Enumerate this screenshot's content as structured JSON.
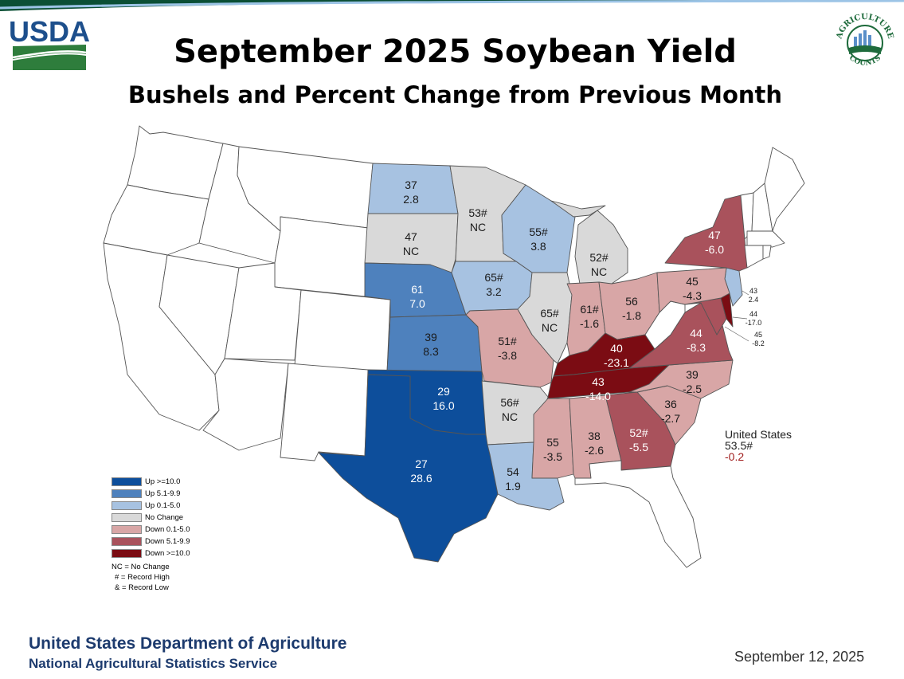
{
  "header": {
    "title": "September 2025 Soybean Yield",
    "subtitle": "Bushels and Percent Change from Previous Month",
    "usda_logo_text": "USDA",
    "nass_logo_top_text": "AGRICULTURE",
    "nass_logo_bottom_text": "COUNTS"
  },
  "legend": {
    "items": [
      {
        "label": "Up >=10.0",
        "color": "#0d4e9b"
      },
      {
        "label": "Up 5.1-9.9",
        "color": "#4e81bd"
      },
      {
        "label": "Up 0.1-5.0",
        "color": "#a7c2e1"
      },
      {
        "label": "No Change",
        "color": "#d9d9d9"
      },
      {
        "label": "Down 0.1-5.0",
        "color": "#d8a6a6"
      },
      {
        "label": "Down 5.1-9.9",
        "color": "#a9525c"
      },
      {
        "label": "Down >=10.0",
        "color": "#7b0c13"
      }
    ],
    "notes": [
      "NC = No Change",
      "# = Record High",
      "& = Record Low"
    ]
  },
  "states": [
    {
      "id": "nd",
      "yield": "37",
      "change": "2.8",
      "class": "up_small"
    },
    {
      "id": "mn",
      "yield": "53#",
      "change": "NC",
      "class": "nc"
    },
    {
      "id": "sd",
      "yield": "47",
      "change": "NC",
      "class": "nc"
    },
    {
      "id": "wi",
      "yield": "55#",
      "change": "3.8",
      "class": "up_small"
    },
    {
      "id": "mi",
      "yield": "52#",
      "change": "NC",
      "class": "nc"
    },
    {
      "id": "ia",
      "yield": "65#",
      "change": "3.2",
      "class": "up_small"
    },
    {
      "id": "ne",
      "yield": "61",
      "change": "7.0",
      "class": "up_mid"
    },
    {
      "id": "ny",
      "yield": "47",
      "change": "-6.0",
      "class": "down_mid"
    },
    {
      "id": "pa",
      "yield": "45",
      "change": "-4.3",
      "class": "down_small"
    },
    {
      "id": "nj",
      "yield": "43",
      "change": "2.4",
      "class": "up_small"
    },
    {
      "id": "de",
      "yield": "44",
      "change": "-17.0",
      "class": "down_big"
    },
    {
      "id": "md",
      "yield": "45",
      "change": "-8.2",
      "class": "down_mid"
    },
    {
      "id": "il",
      "yield": "65#",
      "change": "NC",
      "class": "nc"
    },
    {
      "id": "in",
      "yield": "61#",
      "change": "-1.6",
      "class": "down_small"
    },
    {
      "id": "oh",
      "yield": "56",
      "change": "-1.8",
      "class": "down_small"
    },
    {
      "id": "ks",
      "yield": "39",
      "change": "8.3",
      "class": "up_mid"
    },
    {
      "id": "mo",
      "yield": "51#",
      "change": "-3.8",
      "class": "down_small"
    },
    {
      "id": "ky",
      "yield": "40",
      "change": "-23.1",
      "class": "down_big"
    },
    {
      "id": "va",
      "yield": "44",
      "change": "-8.3",
      "class": "down_mid"
    },
    {
      "id": "tn",
      "yield": "43",
      "change": "-14.0",
      "class": "down_big"
    },
    {
      "id": "nc",
      "yield": "39",
      "change": "-2.5",
      "class": "down_small"
    },
    {
      "id": "ok",
      "yield": "29",
      "change": "16.0",
      "class": "up_big"
    },
    {
      "id": "ar",
      "yield": "56#",
      "change": "NC",
      "class": "nc"
    },
    {
      "id": "sc",
      "yield": "36",
      "change": "-2.7",
      "class": "down_small"
    },
    {
      "id": "ms",
      "yield": "55",
      "change": "-3.5",
      "class": "down_small"
    },
    {
      "id": "al",
      "yield": "38",
      "change": "-2.6",
      "class": "down_small"
    },
    {
      "id": "ga",
      "yield": "52#",
      "change": "-5.5",
      "class": "down_mid"
    },
    {
      "id": "tx",
      "yield": "27",
      "change": "28.6",
      "class": "up_big"
    },
    {
      "id": "la",
      "yield": "54",
      "change": "1.9",
      "class": "up_small"
    }
  ],
  "us_total": {
    "label": "United States",
    "yield": "53.5#",
    "change": "-0.2"
  },
  "footer": {
    "department": "United States Department of Agriculture",
    "agency": "National Agricultural Statistics Service",
    "date": "September 12, 2025"
  }
}
